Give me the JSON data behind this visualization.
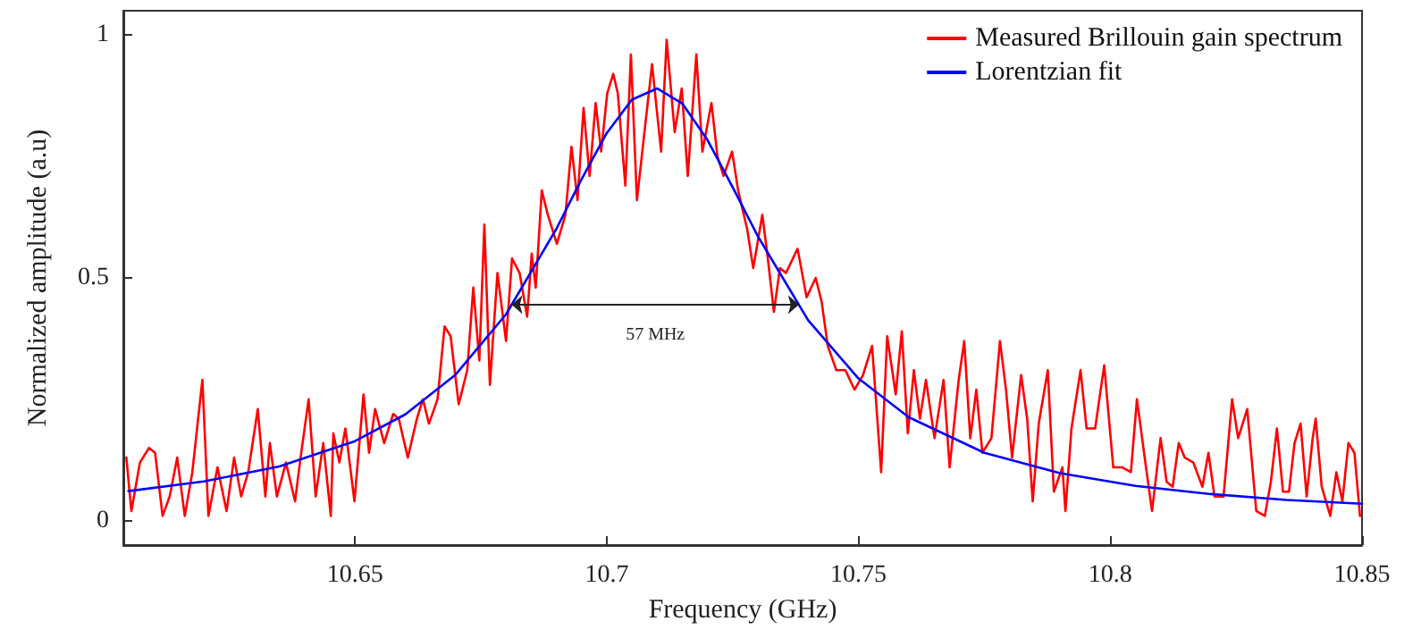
{
  "chart_data": {
    "type": "line",
    "xlabel": "Frequency (GHz)",
    "ylabel": "Normalized amplitude (a.u)",
    "xlim": [
      10.604,
      10.85
    ],
    "xticks": [
      10.65,
      10.7,
      10.75,
      10.8,
      10.85
    ],
    "ylim": [
      -0.05,
      1.05
    ],
    "yticks": [
      0,
      0.5,
      1
    ],
    "grid": false,
    "legend": "top right",
    "marker": "none",
    "line_style": "solid",
    "annotations": [
      "57 MHz"
    ],
    "series": [
      {
        "name": "Measured Brillouin gain spectrum",
        "color": "#ff0000",
        "x": [
          10.6046,
          10.6056,
          10.6073,
          10.6091,
          10.6103,
          10.6118,
          10.6132,
          10.6147,
          10.6162,
          10.6177,
          10.6197,
          10.6209,
          10.6227,
          10.6245,
          10.626,
          10.6274,
          10.6288,
          10.6307,
          10.6322,
          10.6331,
          10.6345,
          10.6363,
          10.6381,
          10.6392,
          10.6408,
          10.6422,
          10.6437,
          10.6452,
          10.6457,
          10.6469,
          10.6481,
          10.6499,
          10.6517,
          10.6528,
          10.654,
          10.6558,
          10.6576,
          10.6587,
          10.6605,
          10.6623,
          10.6635,
          10.6647,
          10.6664,
          10.6678,
          10.669,
          10.6706,
          10.6723,
          10.6735,
          10.6747,
          10.6757,
          10.6768,
          10.6783,
          10.68,
          10.6812,
          10.6827,
          10.6842,
          10.6851,
          10.6859,
          10.6871,
          10.6883,
          10.6901,
          10.6918,
          10.693,
          10.6942,
          10.6954,
          10.6966,
          10.6978,
          10.6989,
          10.7001,
          10.7013,
          10.7022,
          10.7037,
          10.7048,
          10.706,
          10.7076,
          10.709,
          10.7108,
          10.7119,
          10.7135,
          10.7149,
          10.7161,
          10.7178,
          10.719,
          10.7208,
          10.722,
          10.7232,
          10.7249,
          10.7261,
          10.7279,
          10.7291,
          10.7309,
          10.732,
          10.7332,
          10.7344,
          10.7356,
          10.7379,
          10.7397,
          10.7415,
          10.7427,
          10.7439,
          10.7456,
          10.7474,
          10.7492,
          10.7509,
          10.7527,
          10.7545,
          10.7557,
          10.7574,
          10.7586,
          10.7598,
          10.761,
          10.7622,
          10.7634,
          10.7651,
          10.7669,
          10.7681,
          10.7699,
          10.771,
          10.7722,
          10.7734,
          10.7746,
          10.7764,
          10.7781,
          10.7793,
          10.7805,
          10.7823,
          10.7835,
          10.7846,
          10.7858,
          10.7876,
          10.7888,
          10.7905,
          10.7911,
          10.7923,
          10.7941,
          10.7953,
          10.797,
          10.7988,
          10.8006,
          10.8024,
          10.8041,
          10.8053,
          10.8071,
          10.8083,
          10.81,
          10.8112,
          10.8124,
          10.8136,
          10.8148,
          10.8165,
          10.8183,
          10.8195,
          10.8207,
          10.8225,
          10.8242,
          10.8254,
          10.8272,
          10.829,
          10.8307,
          10.8319,
          10.8331,
          10.8343,
          10.8355,
          10.8366,
          10.8378,
          10.839,
          10.8402,
          10.8408,
          10.842,
          10.8437,
          10.8449,
          10.8461,
          10.8473,
          10.8485,
          10.8496
        ],
        "values": [
          0.13,
          0.02,
          0.12,
          0.15,
          0.14,
          0.01,
          0.05,
          0.13,
          0.01,
          0.1,
          0.29,
          0.01,
          0.11,
          0.02,
          0.13,
          0.05,
          0.1,
          0.23,
          0.05,
          0.16,
          0.05,
          0.12,
          0.04,
          0.13,
          0.25,
          0.05,
          0.16,
          0.01,
          0.18,
          0.12,
          0.19,
          0.04,
          0.26,
          0.14,
          0.23,
          0.16,
          0.22,
          0.21,
          0.13,
          0.21,
          0.25,
          0.2,
          0.25,
          0.4,
          0.38,
          0.24,
          0.31,
          0.48,
          0.33,
          0.61,
          0.28,
          0.51,
          0.37,
          0.54,
          0.51,
          0.42,
          0.55,
          0.48,
          0.68,
          0.63,
          0.57,
          0.63,
          0.77,
          0.66,
          0.85,
          0.71,
          0.86,
          0.76,
          0.88,
          0.92,
          0.88,
          0.69,
          0.96,
          0.66,
          0.81,
          0.94,
          0.76,
          0.99,
          0.8,
          0.89,
          0.71,
          0.96,
          0.76,
          0.86,
          0.75,
          0.71,
          0.76,
          0.68,
          0.6,
          0.52,
          0.63,
          0.54,
          0.43,
          0.52,
          0.51,
          0.56,
          0.46,
          0.5,
          0.45,
          0.36,
          0.31,
          0.31,
          0.27,
          0.3,
          0.36,
          0.1,
          0.38,
          0.26,
          0.39,
          0.18,
          0.31,
          0.21,
          0.29,
          0.17,
          0.29,
          0.11,
          0.29,
          0.37,
          0.17,
          0.27,
          0.14,
          0.17,
          0.37,
          0.27,
          0.13,
          0.3,
          0.21,
          0.04,
          0.2,
          0.31,
          0.06,
          0.11,
          0.02,
          0.19,
          0.31,
          0.19,
          0.19,
          0.32,
          0.11,
          0.11,
          0.1,
          0.25,
          0.11,
          0.02,
          0.17,
          0.08,
          0.07,
          0.16,
          0.13,
          0.12,
          0.07,
          0.14,
          0.05,
          0.05,
          0.25,
          0.17,
          0.23,
          0.02,
          0.01,
          0.08,
          0.19,
          0.06,
          0.06,
          0.16,
          0.2,
          0.05,
          0.17,
          0.21,
          0.07,
          0.01,
          0.1,
          0.04,
          0.16,
          0.14,
          0.01
        ]
      },
      {
        "name": "Lorentzian fit",
        "color": "#0000ff",
        "x": [
          10.605,
          10.62,
          10.635,
          10.65,
          10.66,
          10.67,
          10.68,
          10.69,
          10.695,
          10.7,
          10.705,
          10.71,
          10.715,
          10.72,
          10.725,
          10.73,
          10.74,
          10.75,
          10.76,
          10.775,
          10.79,
          10.805,
          10.82,
          10.835,
          10.85
        ],
        "values": [
          0.061,
          0.081,
          0.112,
          0.164,
          0.219,
          0.301,
          0.425,
          0.601,
          0.703,
          0.798,
          0.867,
          0.89,
          0.859,
          0.784,
          0.687,
          0.586,
          0.413,
          0.293,
          0.213,
          0.14,
          0.098,
          0.072,
          0.055,
          0.043,
          0.035
        ]
      }
    ]
  }
}
